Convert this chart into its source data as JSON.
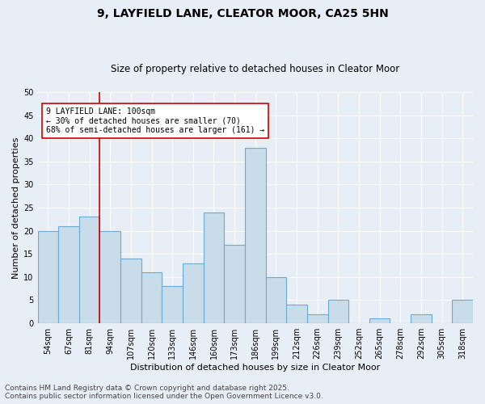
{
  "title1": "9, LAYFIELD LANE, CLEATOR MOOR, CA25 5HN",
  "title2": "Size of property relative to detached houses in Cleator Moor",
  "xlabel": "Distribution of detached houses by size in Cleator Moor",
  "ylabel": "Number of detached properties",
  "categories": [
    "54sqm",
    "67sqm",
    "81sqm",
    "94sqm",
    "107sqm",
    "120sqm",
    "133sqm",
    "146sqm",
    "160sqm",
    "173sqm",
    "186sqm",
    "199sqm",
    "212sqm",
    "226sqm",
    "239sqm",
    "252sqm",
    "265sqm",
    "278sqm",
    "292sqm",
    "305sqm",
    "318sqm"
  ],
  "values": [
    20,
    21,
    23,
    20,
    14,
    11,
    8,
    13,
    24,
    17,
    38,
    10,
    4,
    2,
    5,
    0,
    1,
    0,
    2,
    0,
    5
  ],
  "bar_color": "#c9dcea",
  "bar_edge_color": "#6aaad4",
  "vline_x_index": 3,
  "vline_color": "#cc0000",
  "ylim": [
    0,
    50
  ],
  "yticks": [
    0,
    5,
    10,
    15,
    20,
    25,
    30,
    35,
    40,
    45,
    50
  ],
  "annotation_line1": "9 LAYFIELD LANE: 100sqm",
  "annotation_line2": "← 30% of detached houses are smaller (70)",
  "annotation_line3": "68% of semi-detached houses are larger (161) →",
  "annotation_box_color": "#ffffff",
  "annotation_box_edge_color": "#cc0000",
  "footer1": "Contains HM Land Registry data © Crown copyright and database right 2025.",
  "footer2": "Contains public sector information licensed under the Open Government Licence v3.0.",
  "background_color": "#e8eef5",
  "grid_color": "#ffffff",
  "title1_fontsize": 10,
  "title2_fontsize": 8.5,
  "axis_label_fontsize": 8,
  "tick_fontsize": 7,
  "annotation_fontsize": 7,
  "footer_fontsize": 6.5
}
